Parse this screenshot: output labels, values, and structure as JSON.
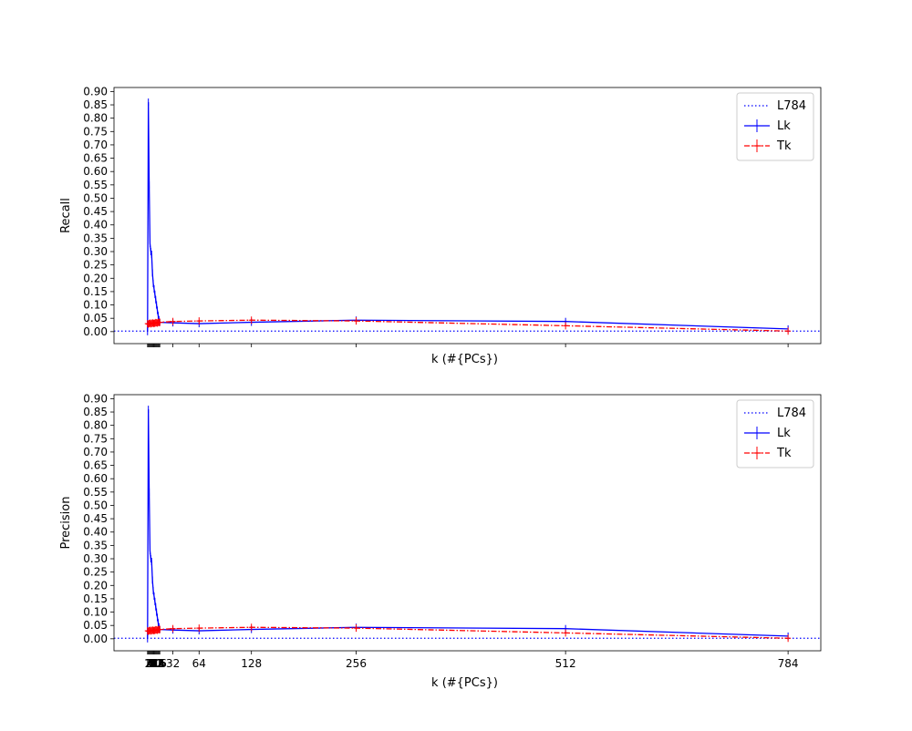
{
  "colors": {
    "L784": "#0000ff",
    "Lk": "#0000ff",
    "Tk": "#ff0000",
    "axes": "#000000",
    "background": "#ffffff"
  },
  "x_tick_labels_visible": [
    "32",
    "64",
    "128",
    "256",
    "512",
    "784"
  ],
  "chart_data": [
    {
      "type": "line",
      "ylabel": "Recall",
      "xlabel": "k (#{PCs})",
      "xlim": [
        -40,
        824
      ],
      "ylim": [
        -0.045,
        0.915
      ],
      "yticks": [
        0.0,
        0.05,
        0.1,
        0.15,
        0.2,
        0.25,
        0.3,
        0.35,
        0.4,
        0.45,
        0.5,
        0.55,
        0.6,
        0.65,
        0.7,
        0.75,
        0.8,
        0.85,
        0.9
      ],
      "ytick_labels": [
        "0.00",
        "0.05",
        "0.10",
        "0.15",
        "0.20",
        "0.25",
        "0.30",
        "0.35",
        "0.40",
        "0.45",
        "0.50",
        "0.55",
        "0.60",
        "0.65",
        "0.70",
        "0.75",
        "0.80",
        "0.85",
        "0.90"
      ],
      "xticks_dense_range": [
        1,
        16
      ],
      "xticks": [
        32,
        64,
        128,
        256,
        512,
        784
      ],
      "xtick_labels_shown": false,
      "legend": {
        "position": "top-right",
        "entries": [
          "L784",
          "Lk",
          "Tk"
        ]
      },
      "series": [
        {
          "name": "L784",
          "style": "dotted",
          "hline": 0.002
        },
        {
          "name": "Lk",
          "style": "solid-errorbar",
          "x": [
            1,
            2,
            3,
            4,
            5,
            6,
            7,
            8,
            9,
            10,
            11,
            12,
            13,
            14,
            15,
            16,
            32,
            64,
            128,
            256,
            512,
            784
          ],
          "y": [
            0.0,
            0.86,
            0.55,
            0.33,
            0.3,
            0.29,
            0.22,
            0.18,
            0.16,
            0.14,
            0.12,
            0.1,
            0.08,
            0.06,
            0.045,
            0.035,
            0.033,
            0.03,
            0.035,
            0.043,
            0.038,
            0.01
          ]
        },
        {
          "name": "Tk",
          "style": "dashdot-errorbar",
          "x": [
            1,
            2,
            3,
            4,
            5,
            6,
            7,
            8,
            9,
            10,
            11,
            12,
            13,
            14,
            15,
            16,
            32,
            64,
            128,
            256,
            512,
            784
          ],
          "y": [
            0.03,
            0.028,
            0.03,
            0.032,
            0.029,
            0.031,
            0.033,
            0.03,
            0.032,
            0.031,
            0.034,
            0.033,
            0.032,
            0.035,
            0.034,
            0.035,
            0.038,
            0.04,
            0.043,
            0.04,
            0.022,
            0.002
          ]
        }
      ]
    },
    {
      "type": "line",
      "ylabel": "Precision",
      "xlabel": "k (#{PCs})",
      "xlim": [
        -40,
        824
      ],
      "ylim": [
        -0.045,
        0.915
      ],
      "yticks": [
        0.0,
        0.05,
        0.1,
        0.15,
        0.2,
        0.25,
        0.3,
        0.35,
        0.4,
        0.45,
        0.5,
        0.55,
        0.6,
        0.65,
        0.7,
        0.75,
        0.8,
        0.85,
        0.9
      ],
      "ytick_labels": [
        "0.00",
        "0.05",
        "0.10",
        "0.15",
        "0.20",
        "0.25",
        "0.30",
        "0.35",
        "0.40",
        "0.45",
        "0.50",
        "0.55",
        "0.60",
        "0.65",
        "0.70",
        "0.75",
        "0.80",
        "0.85",
        "0.90"
      ],
      "xticks_dense_range": [
        1,
        16
      ],
      "xticks": [
        32,
        64,
        128,
        256,
        512,
        784
      ],
      "xtick_labels": [
        "32",
        "64",
        "128",
        "256",
        "512",
        "784"
      ],
      "xtick_labels_shown": true,
      "legend": {
        "position": "top-right",
        "entries": [
          "L784",
          "Lk",
          "Tk"
        ]
      },
      "series": [
        {
          "name": "L784",
          "style": "dotted",
          "hline": 0.002
        },
        {
          "name": "Lk",
          "style": "solid-errorbar",
          "x": [
            1,
            2,
            3,
            4,
            5,
            6,
            7,
            8,
            9,
            10,
            11,
            12,
            13,
            14,
            15,
            16,
            32,
            64,
            128,
            256,
            512,
            784
          ],
          "y": [
            0.0,
            0.86,
            0.55,
            0.33,
            0.3,
            0.29,
            0.22,
            0.18,
            0.16,
            0.14,
            0.12,
            0.1,
            0.08,
            0.06,
            0.045,
            0.035,
            0.033,
            0.03,
            0.035,
            0.043,
            0.038,
            0.01
          ]
        },
        {
          "name": "Tk",
          "style": "dashdot-errorbar",
          "x": [
            1,
            2,
            3,
            4,
            5,
            6,
            7,
            8,
            9,
            10,
            11,
            12,
            13,
            14,
            15,
            16,
            32,
            64,
            128,
            256,
            512,
            784
          ],
          "y": [
            0.03,
            0.028,
            0.03,
            0.032,
            0.029,
            0.031,
            0.033,
            0.03,
            0.032,
            0.031,
            0.034,
            0.033,
            0.032,
            0.035,
            0.034,
            0.035,
            0.038,
            0.04,
            0.043,
            0.04,
            0.022,
            0.002
          ]
        }
      ]
    }
  ]
}
